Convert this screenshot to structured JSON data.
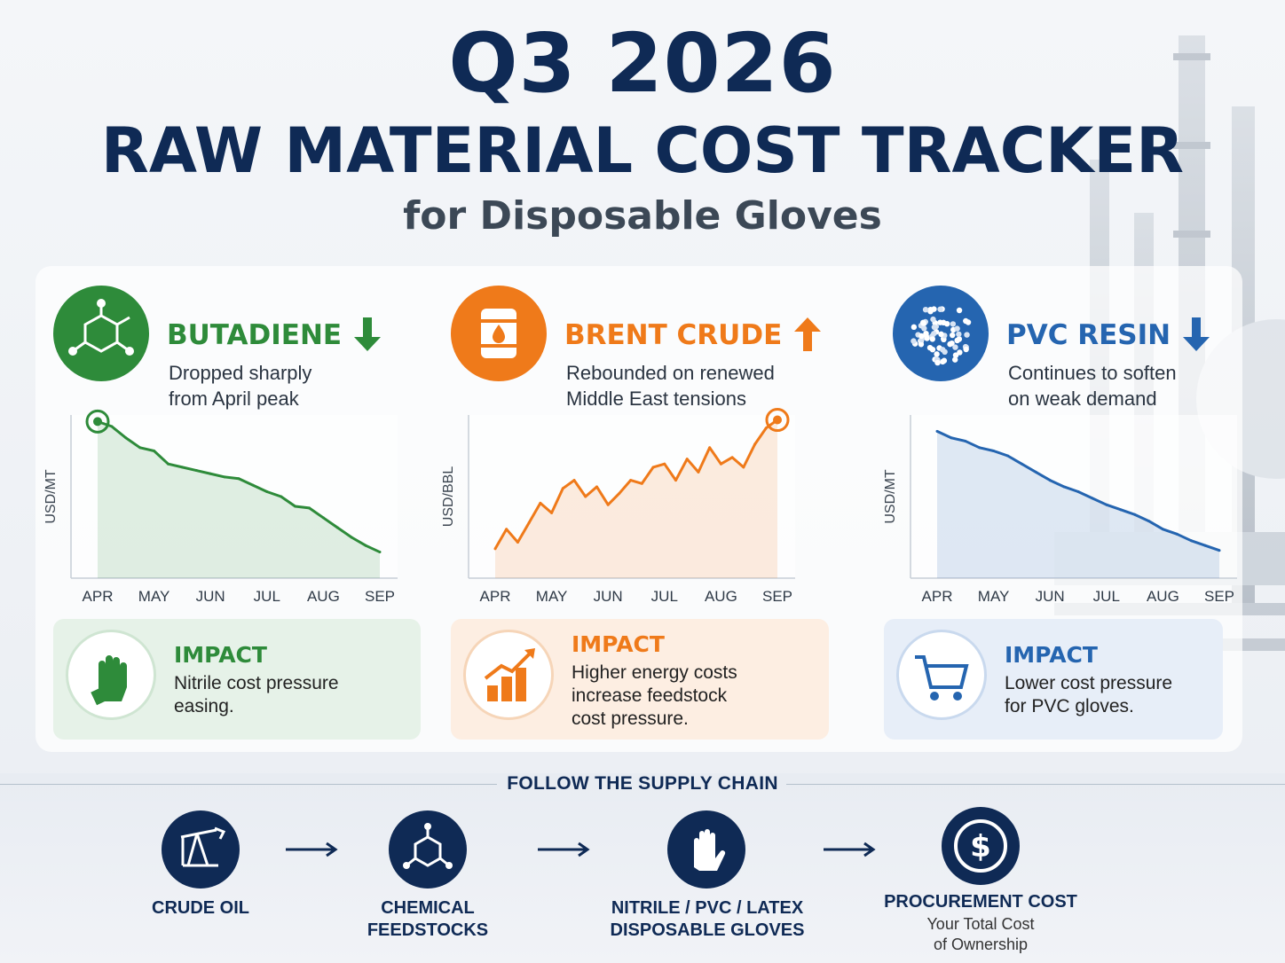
{
  "header": {
    "title_line1": "Q3 2026",
    "title_line2": "RAW MATERIAL COST TRACKER",
    "title_line3": "for Disposable Gloves"
  },
  "colors": {
    "navy": "#0f2a55",
    "green": "#2e8b3a",
    "orange": "#ef7a1a",
    "blue": "#2565b0"
  },
  "panels": [
    {
      "id": "butadiene",
      "title": "BUTADIENE",
      "trend": "down",
      "trend_icon": "arrow-down-icon",
      "icon": "molecule-icon",
      "desc_line1": "Dropped sharply",
      "desc_line2": "from April peak",
      "impact_icon": "glove-icon",
      "impact_title": "IMPACT",
      "impact_line1": "Nitrile cost pressure",
      "impact_line2": "easing."
    },
    {
      "id": "brent",
      "title": "BRENT CRUDE",
      "trend": "up",
      "trend_icon": "arrow-up-icon",
      "icon": "oil-barrel-icon",
      "desc_line1": "Rebounded on renewed",
      "desc_line2": "Middle East tensions",
      "impact_icon": "rising-bar-chart-icon",
      "impact_title": "IMPACT",
      "impact_line1": "Higher energy costs",
      "impact_line2": "increase feedstock",
      "impact_line3": "cost pressure."
    },
    {
      "id": "pvc",
      "title": "PVC RESIN",
      "trend": "down",
      "trend_icon": "arrow-down-icon",
      "icon": "resin-pellets-icon",
      "desc_line1": "Continues to soften",
      "desc_line2": "on weak demand",
      "impact_icon": "shopping-cart-icon",
      "impact_title": "IMPACT",
      "impact_line1": "Lower cost pressure",
      "impact_line2": "for PVC gloves."
    }
  ],
  "chart_data": [
    {
      "type": "area",
      "title": "BUTADIENE",
      "ylabel": "USD/MT",
      "categories": [
        "APR",
        "MAY",
        "JUN",
        "JUL",
        "AUG",
        "SEP"
      ],
      "ylim": [
        0,
        100
      ],
      "x": [
        0,
        0.25,
        0.5,
        0.75,
        1,
        1.25,
        1.5,
        1.75,
        2,
        2.25,
        2.5,
        2.75,
        3,
        3.25,
        3.5,
        3.75,
        4,
        4.25,
        4.5,
        4.75,
        5
      ],
      "values": [
        96,
        93,
        86,
        80,
        78,
        70,
        68,
        66,
        64,
        62,
        61,
        57,
        53,
        50,
        44,
        43,
        37,
        31,
        25,
        20,
        16
      ],
      "highlight_index": 0,
      "color": "#2e8b3a"
    },
    {
      "type": "area",
      "title": "BRENT CRUDE",
      "ylabel": "USD/BBL",
      "categories": [
        "APR",
        "MAY",
        "JUN",
        "JUL",
        "AUG",
        "SEP"
      ],
      "ylim": [
        0,
        100
      ],
      "x": [
        0,
        0.2,
        0.4,
        0.6,
        0.8,
        1,
        1.2,
        1.4,
        1.6,
        1.8,
        2,
        2.2,
        2.4,
        2.6,
        2.8,
        3,
        3.2,
        3.4,
        3.6,
        3.8,
        4,
        4.2,
        4.4,
        4.6,
        4.8,
        5
      ],
      "values": [
        18,
        30,
        22,
        34,
        46,
        40,
        55,
        60,
        50,
        56,
        45,
        52,
        60,
        58,
        68,
        70,
        60,
        73,
        65,
        80,
        70,
        74,
        68,
        82,
        92,
        97
      ],
      "highlight_index": 25,
      "color": "#ef7a1a"
    },
    {
      "type": "area",
      "title": "PVC RESIN",
      "ylabel": "USD/MT",
      "categories": [
        "APR",
        "MAY",
        "JUN",
        "JUL",
        "AUG",
        "SEP"
      ],
      "ylim": [
        0,
        100
      ],
      "x": [
        0,
        0.25,
        0.5,
        0.75,
        1,
        1.25,
        1.5,
        1.75,
        2,
        2.25,
        2.5,
        2.75,
        3,
        3.25,
        3.5,
        3.75,
        4,
        4.25,
        4.5,
        4.75,
        5
      ],
      "values": [
        90,
        86,
        84,
        80,
        78,
        75,
        70,
        65,
        60,
        56,
        53,
        49,
        45,
        42,
        39,
        35,
        30,
        27,
        23,
        20,
        17
      ],
      "highlight_index": -1,
      "color": "#2565b0"
    }
  ],
  "chain": {
    "title": "FOLLOW THE SUPPLY CHAIN",
    "steps": [
      {
        "icon": "oil-pump-icon",
        "line1": "CRUDE OIL",
        "line2": ""
      },
      {
        "icon": "molecule-icon",
        "line1": "CHEMICAL",
        "line2": "FEEDSTOCKS"
      },
      {
        "icon": "glove-icon",
        "line1": "NITRILE / PVC / LATEX",
        "line2": "DISPOSABLE GLOVES"
      },
      {
        "icon": "dollar-coin-icon",
        "line1": "PROCUREMENT COST",
        "sub1": "Your Total Cost",
        "sub2": "of Ownership"
      }
    ]
  }
}
